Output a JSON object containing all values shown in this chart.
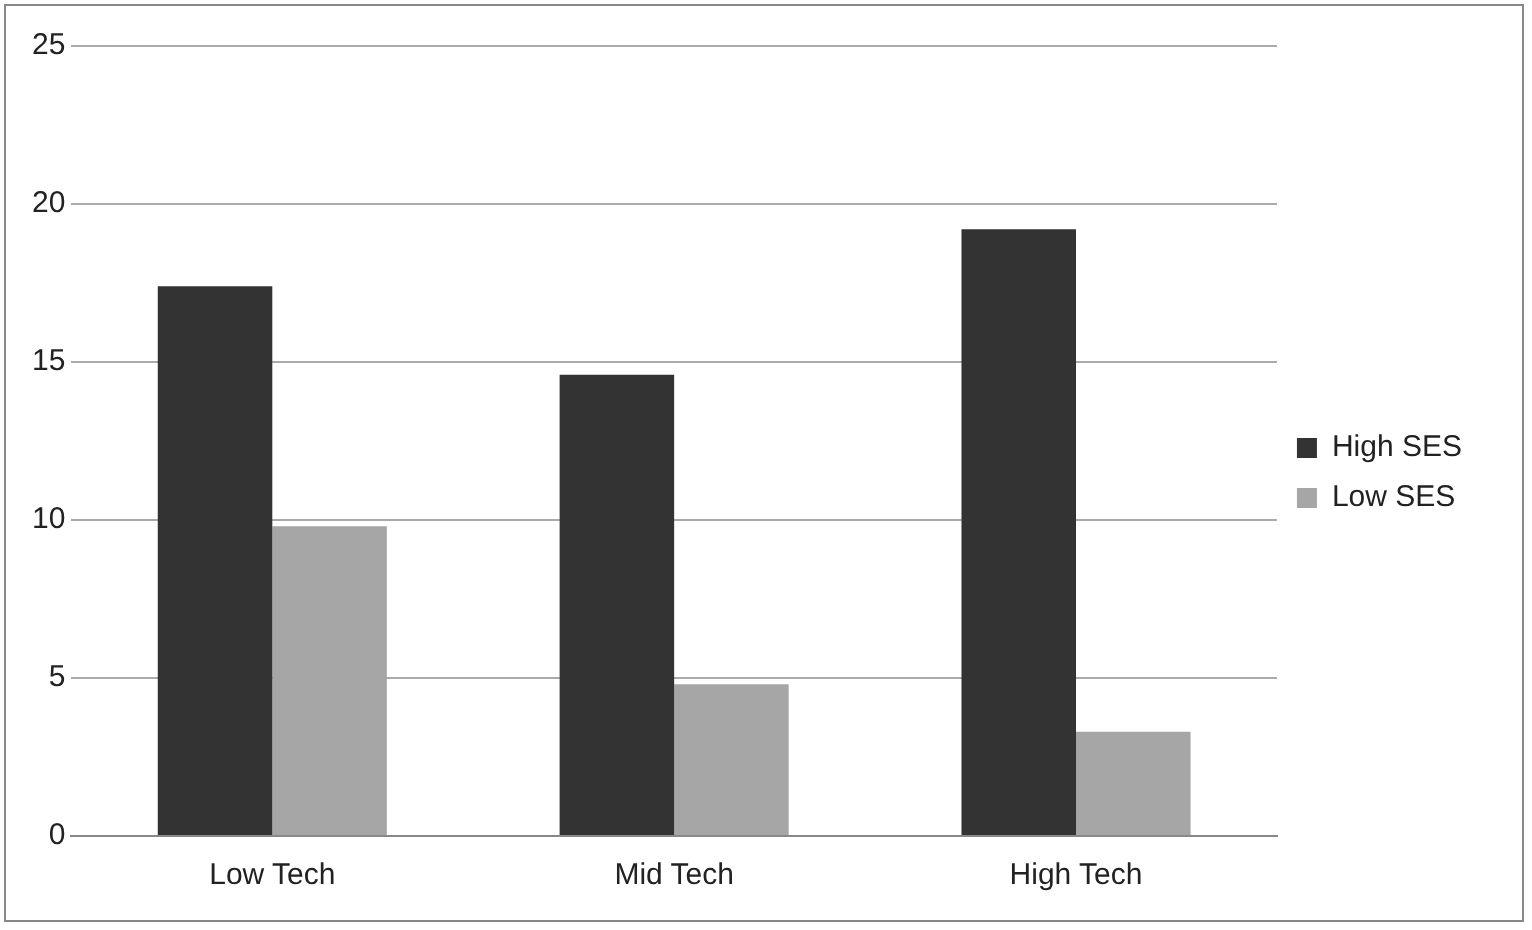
{
  "chart_data": {
    "type": "bar",
    "categories": [
      "Low Tech",
      "Mid Tech",
      "High Tech"
    ],
    "series": [
      {
        "name": "High SES",
        "color": "#333333",
        "values": [
          17.4,
          14.6,
          19.2
        ]
      },
      {
        "name": "Low SES",
        "color": "#a6a6a6",
        "values": [
          9.8,
          4.8,
          3.3
        ]
      }
    ],
    "ylim": [
      0,
      25
    ],
    "yticks": [
      0,
      5,
      10,
      15,
      20,
      25
    ],
    "grid": "y",
    "legend": "right"
  }
}
